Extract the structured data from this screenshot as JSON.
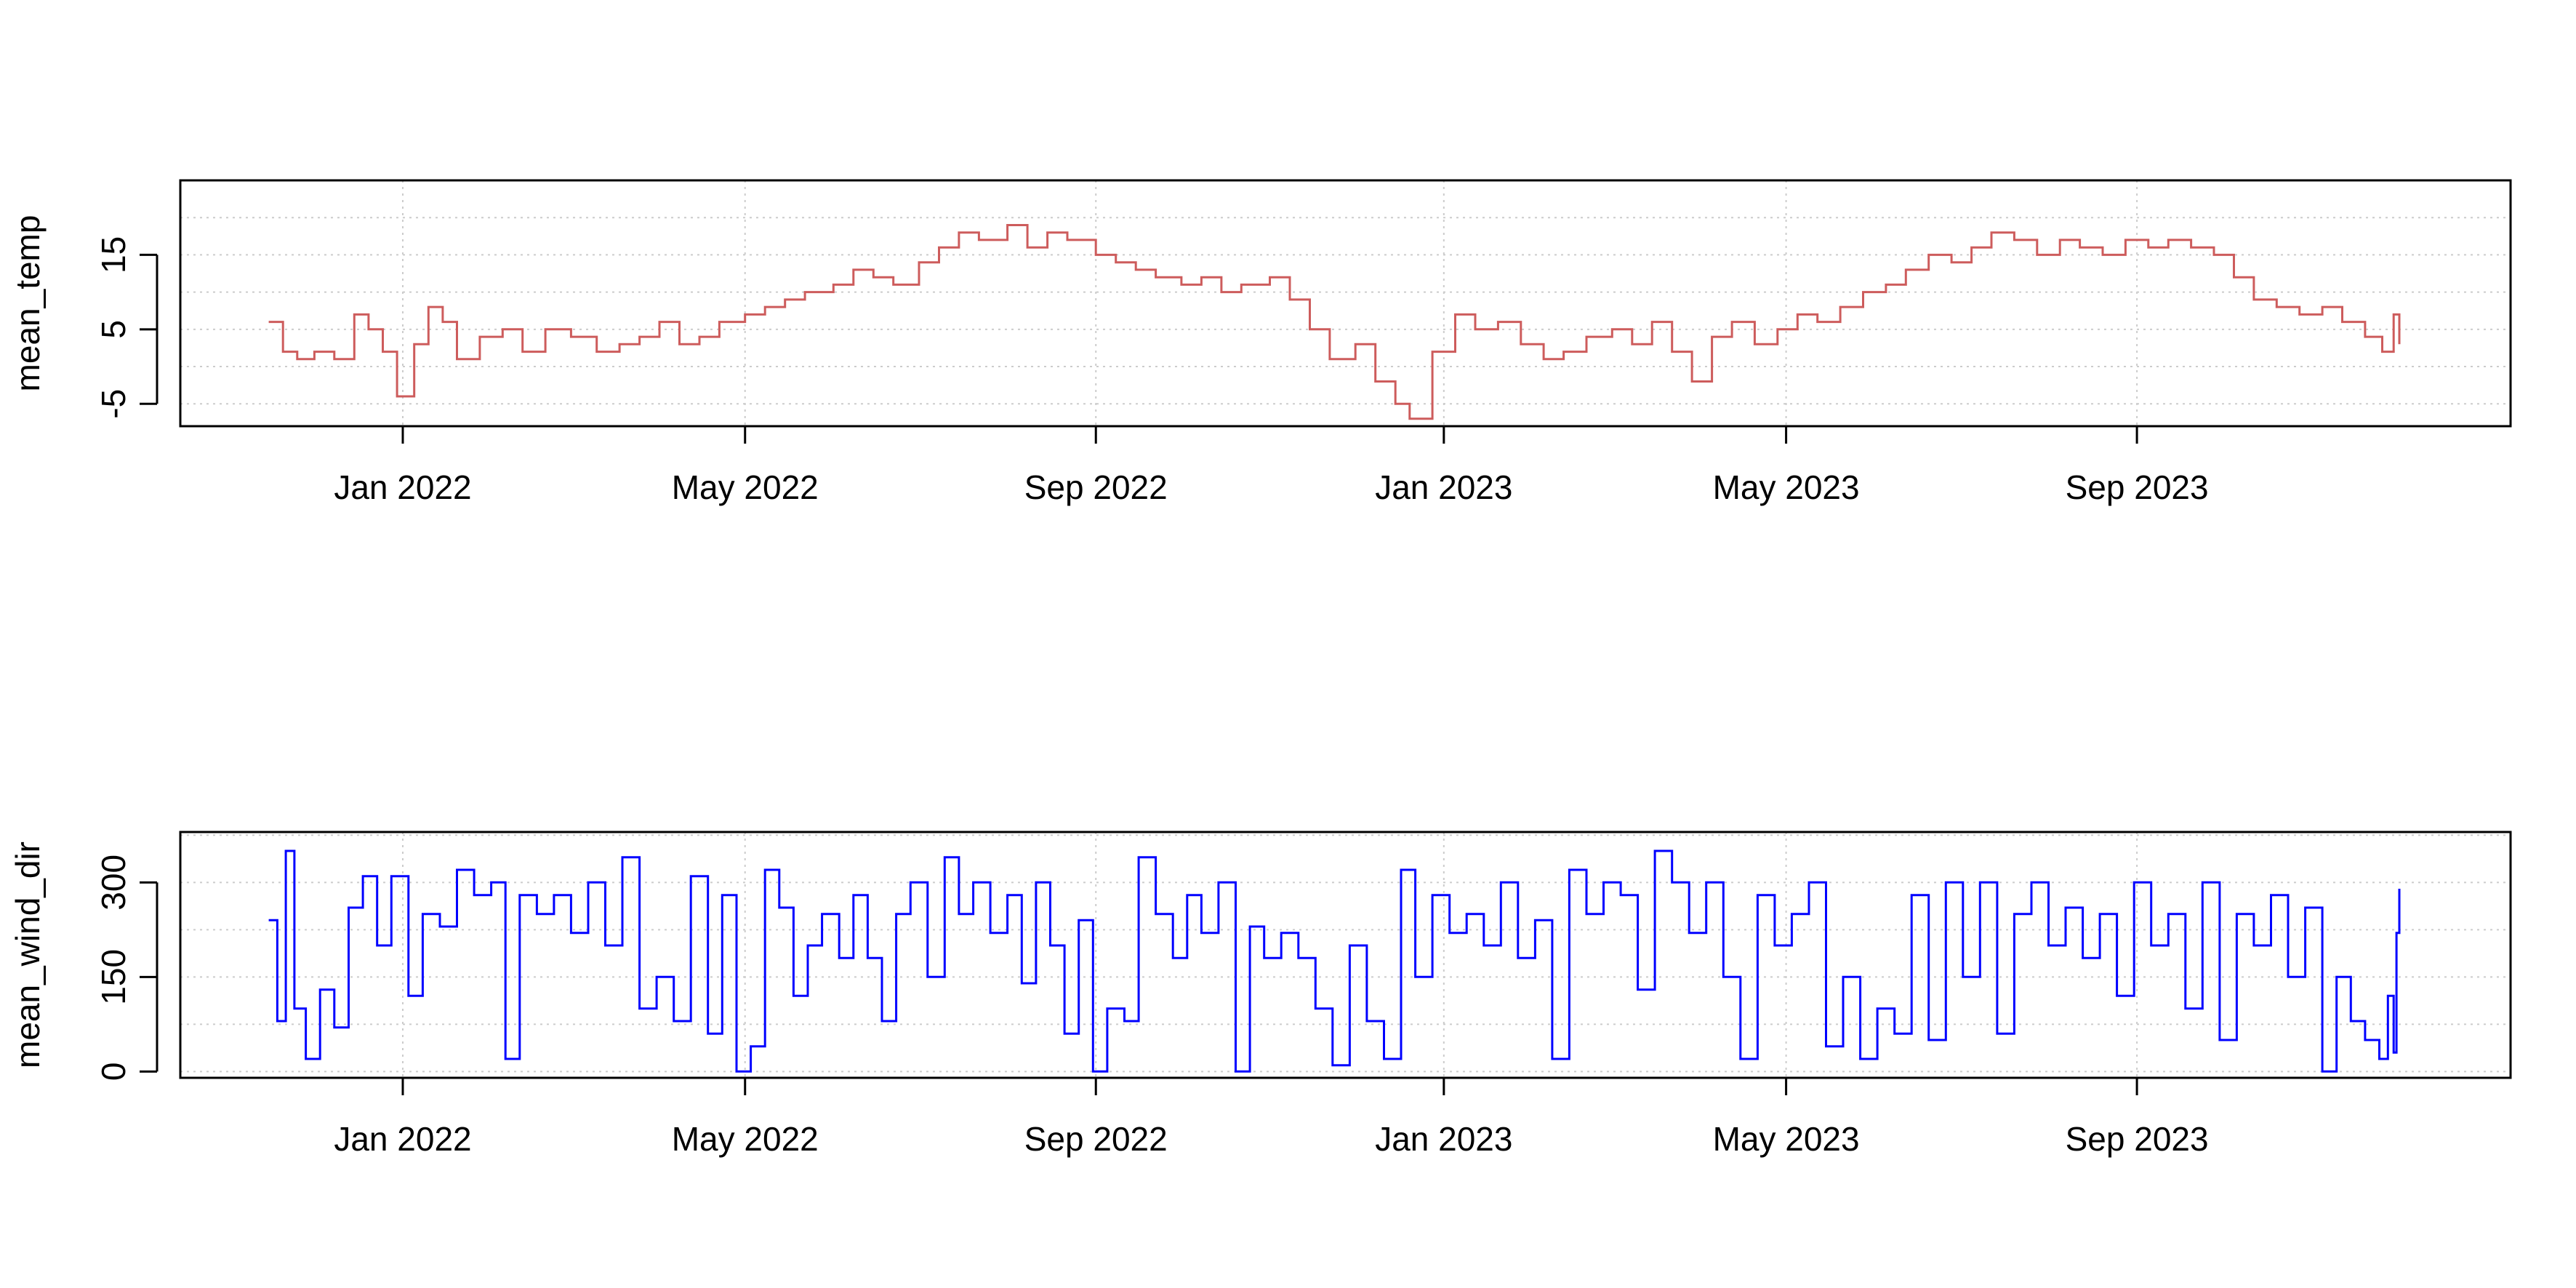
{
  "chart_data": [
    {
      "type": "line",
      "style": "step",
      "title": "",
      "xlabel": "",
      "ylabel": "mean_temp",
      "x_tick_labels": [
        "Jan 2022",
        "May 2022",
        "Sep 2022",
        "Jan 2023",
        "May 2023",
        "Sep 2023"
      ],
      "x_tick_dates": [
        "2022-01-01",
        "2022-05-01",
        "2022-09-01",
        "2023-01-01",
        "2023-05-01",
        "2023-09-01"
      ],
      "xlim": [
        "2021-10-15",
        "2024-01-10"
      ],
      "ylim": [
        -8,
        25
      ],
      "y_ticks": [
        -5,
        5,
        15
      ],
      "y_tick_labels": [
        "-5",
        "5",
        "15"
      ],
      "grid": true,
      "series": [
        {
          "color": "#cd5c5c",
          "points": [
            [
              "2021-11-15",
              6
            ],
            [
              "2021-11-20",
              2
            ],
            [
              "2021-11-25",
              1
            ],
            [
              "2021-12-01",
              2
            ],
            [
              "2021-12-08",
              1
            ],
            [
              "2021-12-15",
              7
            ],
            [
              "2021-12-20",
              5
            ],
            [
              "2021-12-25",
              2
            ],
            [
              "2021-12-30",
              -4
            ],
            [
              "2022-01-05",
              3
            ],
            [
              "2022-01-10",
              8
            ],
            [
              "2022-01-15",
              6
            ],
            [
              "2022-01-20",
              1
            ],
            [
              "2022-01-28",
              4
            ],
            [
              "2022-02-05",
              5
            ],
            [
              "2022-02-12",
              2
            ],
            [
              "2022-02-20",
              5
            ],
            [
              "2022-03-01",
              4
            ],
            [
              "2022-03-10",
              2
            ],
            [
              "2022-03-18",
              3
            ],
            [
              "2022-03-25",
              4
            ],
            [
              "2022-04-01",
              6
            ],
            [
              "2022-04-08",
              3
            ],
            [
              "2022-04-15",
              4
            ],
            [
              "2022-04-22",
              6
            ],
            [
              "2022-05-01",
              7
            ],
            [
              "2022-05-08",
              8
            ],
            [
              "2022-05-15",
              9
            ],
            [
              "2022-05-22",
              10
            ],
            [
              "2022-06-01",
              11
            ],
            [
              "2022-06-08",
              13
            ],
            [
              "2022-06-15",
              12
            ],
            [
              "2022-06-22",
              11
            ],
            [
              "2022-07-01",
              14
            ],
            [
              "2022-07-08",
              16
            ],
            [
              "2022-07-15",
              18
            ],
            [
              "2022-07-22",
              17
            ],
            [
              "2022-08-01",
              19
            ],
            [
              "2022-08-08",
              16
            ],
            [
              "2022-08-15",
              18
            ],
            [
              "2022-08-22",
              17
            ],
            [
              "2022-09-01",
              15
            ],
            [
              "2022-09-08",
              14
            ],
            [
              "2022-09-15",
              13
            ],
            [
              "2022-09-22",
              12
            ],
            [
              "2022-10-01",
              11
            ],
            [
              "2022-10-08",
              12
            ],
            [
              "2022-10-15",
              10
            ],
            [
              "2022-10-22",
              11
            ],
            [
              "2022-11-01",
              12
            ],
            [
              "2022-11-08",
              9
            ],
            [
              "2022-11-15",
              5
            ],
            [
              "2022-11-22",
              1
            ],
            [
              "2022-12-01",
              3
            ],
            [
              "2022-12-08",
              -2
            ],
            [
              "2022-12-15",
              -5
            ],
            [
              "2022-12-20",
              -7
            ],
            [
              "2022-12-28",
              2
            ],
            [
              "2023-01-05",
              7
            ],
            [
              "2023-01-12",
              5
            ],
            [
              "2023-01-20",
              6
            ],
            [
              "2023-01-28",
              3
            ],
            [
              "2023-02-05",
              1
            ],
            [
              "2023-02-12",
              2
            ],
            [
              "2023-02-20",
              4
            ],
            [
              "2023-03-01",
              5
            ],
            [
              "2023-03-08",
              3
            ],
            [
              "2023-03-15",
              6
            ],
            [
              "2023-03-22",
              2
            ],
            [
              "2023-03-29",
              -2
            ],
            [
              "2023-04-05",
              4
            ],
            [
              "2023-04-12",
              6
            ],
            [
              "2023-04-20",
              3
            ],
            [
              "2023-04-28",
              5
            ],
            [
              "2023-05-05",
              7
            ],
            [
              "2023-05-12",
              6
            ],
            [
              "2023-05-20",
              8
            ],
            [
              "2023-05-28",
              10
            ],
            [
              "2023-06-05",
              11
            ],
            [
              "2023-06-12",
              13
            ],
            [
              "2023-06-20",
              15
            ],
            [
              "2023-06-28",
              14
            ],
            [
              "2023-07-05",
              16
            ],
            [
              "2023-07-12",
              18
            ],
            [
              "2023-07-20",
              17
            ],
            [
              "2023-07-28",
              15
            ],
            [
              "2023-08-05",
              17
            ],
            [
              "2023-08-12",
              16
            ],
            [
              "2023-08-20",
              15
            ],
            [
              "2023-08-28",
              17
            ],
            [
              "2023-09-05",
              16
            ],
            [
              "2023-09-12",
              17
            ],
            [
              "2023-09-20",
              16
            ],
            [
              "2023-09-28",
              15
            ],
            [
              "2023-10-05",
              12
            ],
            [
              "2023-10-12",
              9
            ],
            [
              "2023-10-20",
              8
            ],
            [
              "2023-10-28",
              7
            ],
            [
              "2023-11-05",
              8
            ],
            [
              "2023-11-12",
              6
            ],
            [
              "2023-11-20",
              4
            ],
            [
              "2023-11-26",
              2
            ],
            [
              "2023-11-30",
              7
            ],
            [
              "2023-12-02",
              3
            ]
          ]
        }
      ]
    },
    {
      "type": "line",
      "style": "step",
      "title": "",
      "xlabel": "",
      "ylabel": "mean_wind_dir",
      "x_tick_labels": [
        "Jan 2022",
        "May 2022",
        "Sep 2022",
        "Jan 2023",
        "May 2023",
        "Sep 2023"
      ],
      "x_tick_dates": [
        "2022-01-01",
        "2022-05-01",
        "2022-09-01",
        "2023-01-01",
        "2023-05-01",
        "2023-09-01"
      ],
      "xlim": [
        "2021-10-15",
        "2024-01-10"
      ],
      "ylim": [
        -10,
        380
      ],
      "y_ticks": [
        0,
        150,
        300
      ],
      "y_tick_labels": [
        "0",
        "150",
        "300"
      ],
      "grid": true,
      "series": [
        {
          "color": "#0000ff",
          "points": [
            [
              "2021-11-15",
              240
            ],
            [
              "2021-11-18",
              80
            ],
            [
              "2021-11-21",
              350
            ],
            [
              "2021-11-24",
              100
            ],
            [
              "2021-11-28",
              20
            ],
            [
              "2021-12-03",
              130
            ],
            [
              "2021-12-08",
              70
            ],
            [
              "2021-12-13",
              260
            ],
            [
              "2021-12-18",
              310
            ],
            [
              "2021-12-23",
              200
            ],
            [
              "2021-12-28",
              310
            ],
            [
              "2022-01-03",
              120
            ],
            [
              "2022-01-08",
              250
            ],
            [
              "2022-01-14",
              230
            ],
            [
              "2022-01-20",
              320
            ],
            [
              "2022-01-26",
              280
            ],
            [
              "2022-02-01",
              300
            ],
            [
              "2022-02-06",
              20
            ],
            [
              "2022-02-11",
              280
            ],
            [
              "2022-02-17",
              250
            ],
            [
              "2022-02-23",
              280
            ],
            [
              "2022-03-01",
              220
            ],
            [
              "2022-03-07",
              300
            ],
            [
              "2022-03-13",
              200
            ],
            [
              "2022-03-19",
              340
            ],
            [
              "2022-03-25",
              100
            ],
            [
              "2022-03-31",
              150
            ],
            [
              "2022-04-06",
              80
            ],
            [
              "2022-04-12",
              310
            ],
            [
              "2022-04-18",
              60
            ],
            [
              "2022-04-23",
              280
            ],
            [
              "2022-04-28",
              0
            ],
            [
              "2022-05-03",
              40
            ],
            [
              "2022-05-08",
              320
            ],
            [
              "2022-05-13",
              260
            ],
            [
              "2022-05-18",
              120
            ],
            [
              "2022-05-23",
              200
            ],
            [
              "2022-05-28",
              250
            ],
            [
              "2022-06-03",
              180
            ],
            [
              "2022-06-08",
              280
            ],
            [
              "2022-06-13",
              180
            ],
            [
              "2022-06-18",
              80
            ],
            [
              "2022-06-23",
              250
            ],
            [
              "2022-06-28",
              300
            ],
            [
              "2022-07-04",
              150
            ],
            [
              "2022-07-10",
              340
            ],
            [
              "2022-07-15",
              250
            ],
            [
              "2022-07-20",
              300
            ],
            [
              "2022-07-26",
              220
            ],
            [
              "2022-08-01",
              280
            ],
            [
              "2022-08-06",
              140
            ],
            [
              "2022-08-11",
              300
            ],
            [
              "2022-08-16",
              200
            ],
            [
              "2022-08-21",
              60
            ],
            [
              "2022-08-26",
              240
            ],
            [
              "2022-08-31",
              0
            ],
            [
              "2022-09-05",
              100
            ],
            [
              "2022-09-11",
              80
            ],
            [
              "2022-09-16",
              340
            ],
            [
              "2022-09-22",
              250
            ],
            [
              "2022-09-28",
              180
            ],
            [
              "2022-10-03",
              280
            ],
            [
              "2022-10-08",
              220
            ],
            [
              "2022-10-14",
              300
            ],
            [
              "2022-10-20",
              0
            ],
            [
              "2022-10-25",
              230
            ],
            [
              "2022-10-30",
              180
            ],
            [
              "2022-11-05",
              220
            ],
            [
              "2022-11-11",
              180
            ],
            [
              "2022-11-17",
              100
            ],
            [
              "2022-11-23",
              10
            ],
            [
              "2022-11-29",
              200
            ],
            [
              "2022-12-05",
              80
            ],
            [
              "2022-12-11",
              20
            ],
            [
              "2022-12-17",
              320
            ],
            [
              "2022-12-22",
              150
            ],
            [
              "2022-12-28",
              280
            ],
            [
              "2023-01-03",
              220
            ],
            [
              "2023-01-09",
              250
            ],
            [
              "2023-01-15",
              200
            ],
            [
              "2023-01-21",
              300
            ],
            [
              "2023-01-27",
              180
            ],
            [
              "2023-02-02",
              240
            ],
            [
              "2023-02-08",
              20
            ],
            [
              "2023-02-14",
              320
            ],
            [
              "2023-02-20",
              250
            ],
            [
              "2023-02-26",
              300
            ],
            [
              "2023-03-04",
              280
            ],
            [
              "2023-03-10",
              130
            ],
            [
              "2023-03-16",
              350
            ],
            [
              "2023-03-22",
              300
            ],
            [
              "2023-03-28",
              220
            ],
            [
              "2023-04-03",
              300
            ],
            [
              "2023-04-09",
              150
            ],
            [
              "2023-04-15",
              20
            ],
            [
              "2023-04-21",
              280
            ],
            [
              "2023-04-27",
              200
            ],
            [
              "2023-05-03",
              250
            ],
            [
              "2023-05-09",
              300
            ],
            [
              "2023-05-15",
              40
            ],
            [
              "2023-05-21",
              150
            ],
            [
              "2023-05-27",
              20
            ],
            [
              "2023-06-02",
              100
            ],
            [
              "2023-06-08",
              60
            ],
            [
              "2023-06-14",
              280
            ],
            [
              "2023-06-20",
              50
            ],
            [
              "2023-06-26",
              300
            ],
            [
              "2023-07-02",
              150
            ],
            [
              "2023-07-08",
              300
            ],
            [
              "2023-07-14",
              60
            ],
            [
              "2023-07-20",
              250
            ],
            [
              "2023-07-26",
              300
            ],
            [
              "2023-08-01",
              200
            ],
            [
              "2023-08-07",
              260
            ],
            [
              "2023-08-13",
              180
            ],
            [
              "2023-08-19",
              250
            ],
            [
              "2023-08-25",
              120
            ],
            [
              "2023-08-31",
              300
            ],
            [
              "2023-09-06",
              200
            ],
            [
              "2023-09-12",
              250
            ],
            [
              "2023-09-18",
              100
            ],
            [
              "2023-09-24",
              300
            ],
            [
              "2023-09-30",
              50
            ],
            [
              "2023-10-06",
              250
            ],
            [
              "2023-10-12",
              200
            ],
            [
              "2023-10-18",
              280
            ],
            [
              "2023-10-24",
              150
            ],
            [
              "2023-10-30",
              260
            ],
            [
              "2023-11-05",
              0
            ],
            [
              "2023-11-10",
              150
            ],
            [
              "2023-11-15",
              80
            ],
            [
              "2023-11-20",
              50
            ],
            [
              "2023-11-25",
              20
            ],
            [
              "2023-11-28",
              120
            ],
            [
              "2023-11-30",
              30
            ],
            [
              "2023-12-01",
              220
            ],
            [
              "2023-12-02",
              290
            ]
          ]
        }
      ]
    }
  ]
}
